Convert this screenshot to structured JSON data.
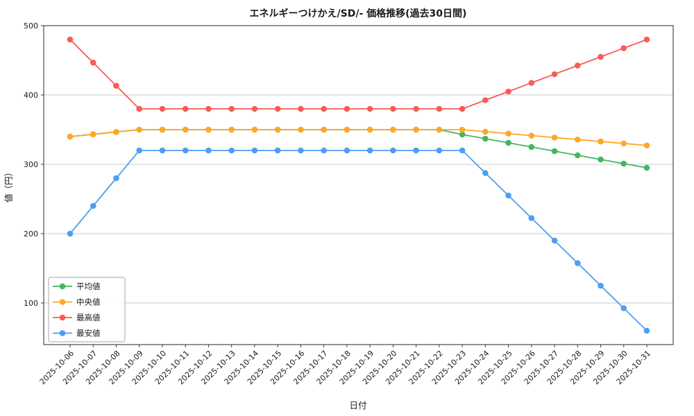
{
  "chart_data": {
    "type": "line",
    "title": "エネルギーつけかえ/SD/- 価格推移(過去30日間)",
    "xlabel": "日付",
    "ylabel": "値（円）",
    "ylim": [
      40,
      500
    ],
    "yticks": [
      100,
      200,
      300,
      400,
      500
    ],
    "grid": true,
    "legend_position": "lower left",
    "x": [
      "2025-10-06",
      "2025-10-07",
      "2025-10-08",
      "2025-10-09",
      "2025-10-10",
      "2025-10-11",
      "2025-10-12",
      "2025-10-13",
      "2025-10-14",
      "2025-10-15",
      "2025-10-16",
      "2025-10-17",
      "2025-10-18",
      "2025-10-19",
      "2025-10-20",
      "2025-10-21",
      "2025-10-22",
      "2025-10-23",
      "2025-10-24",
      "2025-10-25",
      "2025-10-26",
      "2025-10-27",
      "2025-10-28",
      "2025-10-29",
      "2025-10-30",
      "2025-10-31"
    ],
    "series": [
      {
        "name": "平均値",
        "color": "#43b65f",
        "values": [
          340,
          343.3,
          346.7,
          350,
          350,
          350,
          350,
          350,
          350,
          350,
          350,
          350,
          350,
          350,
          350,
          350,
          350,
          343,
          337,
          331,
          325,
          319,
          313,
          307,
          301,
          295
        ]
      },
      {
        "name": "中央値",
        "color": "#ffa726",
        "values": [
          340,
          343.3,
          346.7,
          350,
          350,
          350,
          350,
          350,
          350,
          350,
          350,
          350,
          350,
          350,
          350,
          350,
          350,
          350,
          347.1,
          344.3,
          341.4,
          338.6,
          335.7,
          332.9,
          330.1,
          327.2
        ]
      },
      {
        "name": "最高値",
        "color": "#f85c56",
        "values": [
          480,
          446.7,
          413.3,
          380,
          380,
          380,
          380,
          380,
          380,
          380,
          380,
          380,
          380,
          380,
          380,
          380,
          380,
          380,
          392.5,
          405,
          417.5,
          430,
          442.5,
          455,
          467.5,
          480
        ]
      },
      {
        "name": "最安値",
        "color": "#4d9ef2",
        "values": [
          200,
          240,
          280,
          320,
          320,
          320,
          320,
          320,
          320,
          320,
          320,
          320,
          320,
          320,
          320,
          320,
          320,
          320,
          287.5,
          255,
          222.5,
          190,
          157.5,
          125,
          92.5,
          60
        ]
      }
    ]
  },
  "legend_names_en": [
    "mean",
    "median",
    "max",
    "min"
  ]
}
